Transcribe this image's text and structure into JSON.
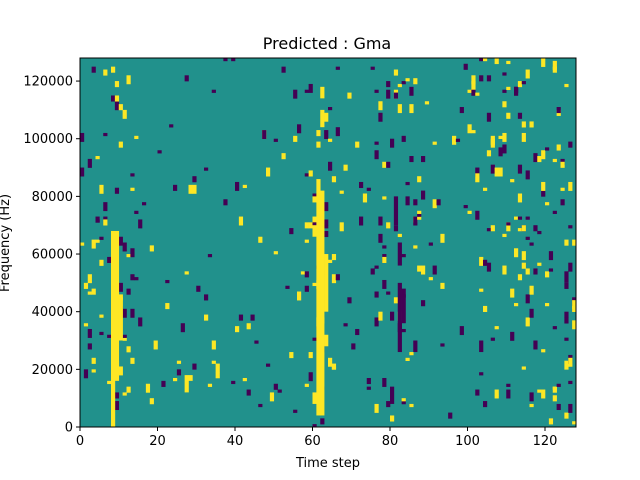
{
  "chart_data": {
    "type": "heatmap",
    "title": "Predicted : Gma",
    "xlabel": "Time step",
    "ylabel": "Frequency (Hz)",
    "xlim": [
      0,
      128
    ],
    "ylim": [
      0,
      128000
    ],
    "x_ticks": [
      0,
      20,
      40,
      60,
      80,
      100,
      120
    ],
    "y_ticks": [
      0,
      20000,
      40000,
      60000,
      80000,
      100000,
      120000
    ],
    "x_tick_labels": [
      "0",
      "20",
      "40",
      "60",
      "80",
      "100",
      "120"
    ],
    "y_tick_labels": [
      "0",
      "20000",
      "40000",
      "60000",
      "80000",
      "100000",
      "120000"
    ],
    "n_time_steps": 128,
    "n_freq_bins": 128,
    "grid": false,
    "colormap": "viridis",
    "value_range": [
      -1,
      1
    ],
    "colors": {
      "-1": "#440154",
      "0": "#21918c",
      "1": "#fde725"
    },
    "background_value": 0,
    "cells": [
      {
        "t": 8,
        "f_start": 0,
        "f_end": 68000,
        "value": 1
      },
      {
        "t": 9,
        "f_start": 16000,
        "f_end": 68000,
        "value": 1
      },
      {
        "t": 10,
        "f_start": 30000,
        "f_end": 46000,
        "value": 1
      },
      {
        "t": 61,
        "f_start": 4000,
        "f_end": 86000,
        "value": 1
      },
      {
        "t": 62,
        "f_start": 4000,
        "f_end": 82000,
        "value": 1
      },
      {
        "t": 63,
        "f_start": 40000,
        "f_end": 60000,
        "value": 1
      },
      {
        "t": 60,
        "f_start": 66000,
        "f_end": 70000,
        "value": 1
      },
      {
        "t": 60,
        "f_start": 8000,
        "f_end": 12000,
        "value": 1
      },
      {
        "t": 63,
        "f_start": 28000,
        "f_end": 32000,
        "value": 1
      },
      {
        "t": 62,
        "f_start": 104000,
        "f_end": 110000,
        "value": 1
      },
      {
        "t": 62,
        "f_start": 114000,
        "f_end": 118000,
        "value": 1
      },
      {
        "t": 82,
        "f_start": 26000,
        "f_end": 50000,
        "value": -1
      },
      {
        "t": 83,
        "f_start": 36000,
        "f_end": 46000,
        "value": -1
      },
      {
        "t": 82,
        "f_start": 56000,
        "f_end": 64000,
        "value": -1
      },
      {
        "t": 81,
        "f_start": 70000,
        "f_end": 80000,
        "value": -1
      },
      {
        "t": 80,
        "f_start": 8000,
        "f_end": 14000,
        "value": -1
      },
      {
        "t": 27,
        "f_start": 12000,
        "f_end": 18000,
        "value": 1
      },
      {
        "t": 28,
        "f_start": 16000,
        "f_end": 18000,
        "value": 1
      },
      {
        "t": 103,
        "f_start": 26000,
        "f_end": 30000,
        "value": -1
      },
      {
        "t": 125,
        "f_start": 50000,
        "f_end": 54000,
        "value": -1
      },
      {
        "t": 86,
        "f_start": 26000,
        "f_end": 30000,
        "value": -1
      }
    ]
  }
}
